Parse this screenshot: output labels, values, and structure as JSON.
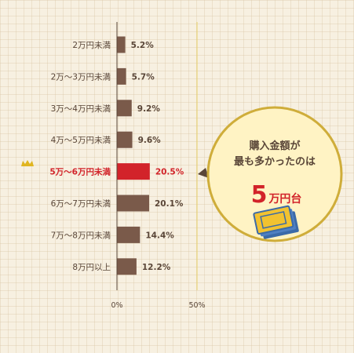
{
  "colors": {
    "bar": "#7a5a4a",
    "highlight": "#d2232a",
    "text": "#5a4638",
    "bubble_fill": "#fff3c4",
    "bubble_stroke": "#cfad3a",
    "crown": "#e0b520"
  },
  "chart_data": {
    "type": "bar",
    "orientation": "horizontal",
    "categories": [
      "2万円未満",
      "2万～3万円未満",
      "3万～4万円未満",
      "4万～5万円未満",
      "5万～6万円未満",
      "6万～7万円未満",
      "7万～8万円未満",
      "8万円以上"
    ],
    "values": [
      5.2,
      5.7,
      9.2,
      9.6,
      20.5,
      20.1,
      14.4,
      12.2
    ],
    "value_labels": [
      "5.2%",
      "5.7%",
      "9.2%",
      "9.6%",
      "20.5%",
      "20.1%",
      "14.4%",
      "12.2%"
    ],
    "highlight_index": 4,
    "xlim": [
      0,
      50
    ],
    "x_ticks": [
      "0%",
      "50%"
    ],
    "grid": false
  },
  "callout": {
    "line1": "購入金額が",
    "line2": "最も多かったのは",
    "big_number": "5",
    "unit": "万円台",
    "icon": "money-icon",
    "badge_icon": "crown-icon"
  }
}
